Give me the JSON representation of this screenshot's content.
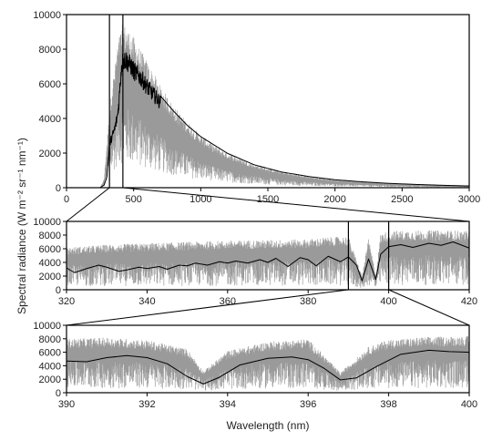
{
  "figure": {
    "ylabel": "Spectral radiance (W m⁻² sr⁻¹ nm⁻¹)",
    "xlabel": "Wavelength (nm)"
  },
  "colors": {
    "fine": "#9a9a9a",
    "smooth": "#000000",
    "axes": "#000000"
  },
  "chart_data": [
    {
      "type": "line",
      "name": "full-spectrum",
      "xlim": [
        0,
        3000
      ],
      "ylim": [
        0,
        10000
      ],
      "xticks": [
        0,
        500,
        1000,
        1500,
        2000,
        2500,
        3000
      ],
      "yticks": [
        0,
        2000,
        4000,
        6000,
        8000,
        10000
      ],
      "zoom_box": [
        320,
        420
      ],
      "series": [
        {
          "role": "high-resolution",
          "x": [
            250,
            280,
            300,
            320,
            340,
            360,
            380,
            400,
            420,
            450,
            480,
            500,
            550,
            600,
            650,
            700,
            800,
            900,
            1000,
            1100,
            1200,
            1400,
            1600,
            1800,
            2000,
            2200,
            2400,
            2600,
            2800,
            3000
          ],
          "y": [
            0,
            500,
            2500,
            4500,
            6000,
            7000,
            8300,
            9000,
            9500,
            9300,
            8900,
            8700,
            8000,
            7300,
            6600,
            5900,
            4700,
            3800,
            3050,
            2450,
            2000,
            1350,
            930,
            660,
            470,
            350,
            260,
            200,
            150,
            110
          ]
        },
        {
          "role": "smoothed",
          "x": [
            250,
            280,
            300,
            320,
            340,
            360,
            380,
            390,
            400,
            410,
            420,
            440,
            460,
            480,
            500,
            550,
            600,
            700,
            800,
            900,
            1000,
            1200,
            1400,
            1600,
            1800,
            2000,
            2200,
            2400,
            2600,
            2800,
            3000
          ],
          "y": [
            0,
            150,
            600,
            2700,
            3200,
            3700,
            4500,
            5300,
            6500,
            7600,
            7900,
            8000,
            7800,
            7600,
            7300,
            6900,
            6300,
            5300,
            4400,
            3600,
            2950,
            1980,
            1320,
            910,
            650,
            460,
            340,
            250,
            190,
            140,
            100
          ]
        }
      ]
    },
    {
      "type": "line",
      "name": "zoom-320-420",
      "xlim": [
        320,
        420
      ],
      "ylim": [
        0,
        10000
      ],
      "xticks": [
        320,
        340,
        360,
        380,
        400,
        420
      ],
      "yticks": [
        0,
        2000,
        4000,
        6000,
        8000,
        10000
      ],
      "zoom_box": [
        390,
        400
      ],
      "series": [
        {
          "role": "high-resolution",
          "x": [
            320,
            330,
            340,
            350,
            360,
            370,
            380,
            385,
            390,
            393.4,
            395,
            396.8,
            398,
            400,
            405,
            410,
            415,
            420
          ],
          "y": [
            6200,
            6600,
            6800,
            7000,
            7200,
            7300,
            7400,
            7700,
            7800,
            2000,
            7500,
            2200,
            8200,
            8600,
            8700,
            8700,
            8700,
            8600
          ]
        },
        {
          "role": "smoothed",
          "x": [
            320,
            322,
            325,
            328,
            330,
            333,
            335,
            338,
            340,
            343,
            345,
            348,
            350,
            352,
            355,
            358,
            360,
            362,
            365,
            368,
            370,
            372,
            375,
            378,
            380,
            382,
            385,
            388,
            390,
            392,
            393.4,
            395,
            396.8,
            398,
            400,
            403,
            406,
            410,
            413,
            416,
            420
          ],
          "y": [
            3200,
            2500,
            3100,
            3600,
            3300,
            2700,
            2900,
            3300,
            3100,
            3400,
            3000,
            3600,
            3500,
            3900,
            3600,
            4100,
            3900,
            4200,
            3900,
            4400,
            4000,
            4600,
            3400,
            4700,
            4400,
            3500,
            4900,
            4100,
            4800,
            3600,
            1300,
            4500,
            1500,
            5200,
            6300,
            6600,
            6200,
            6800,
            6500,
            7000,
            6100
          ]
        }
      ]
    },
    {
      "type": "line",
      "name": "zoom-390-400",
      "xlim": [
        390,
        400
      ],
      "ylim": [
        0,
        10000
      ],
      "xticks": [
        390,
        392,
        394,
        396,
        398,
        400
      ],
      "yticks": [
        0,
        2000,
        4000,
        6000,
        8000,
        10000
      ],
      "series": [
        {
          "role": "high-resolution",
          "x": [
            390,
            391,
            392,
            393,
            393.4,
            394,
            395,
            396,
            396.8,
            397.5,
            398,
            399,
            400
          ],
          "y": [
            8000,
            8200,
            7800,
            6500,
            3200,
            6200,
            7600,
            8000,
            3000,
            6800,
            7900,
            8300,
            8400
          ]
        },
        {
          "role": "smoothed",
          "x": [
            390,
            390.5,
            391,
            391.5,
            392,
            392.5,
            393,
            393.4,
            393.8,
            394.3,
            395,
            395.6,
            396,
            396.4,
            396.8,
            397.2,
            397.7,
            398.3,
            399,
            399.5,
            400
          ],
          "y": [
            4700,
            4600,
            5200,
            5500,
            5200,
            4300,
            2400,
            1300,
            2300,
            4100,
            5100,
            5300,
            4900,
            3600,
            1900,
            2200,
            3900,
            5700,
            6300,
            6100,
            6000
          ]
        }
      ]
    }
  ]
}
